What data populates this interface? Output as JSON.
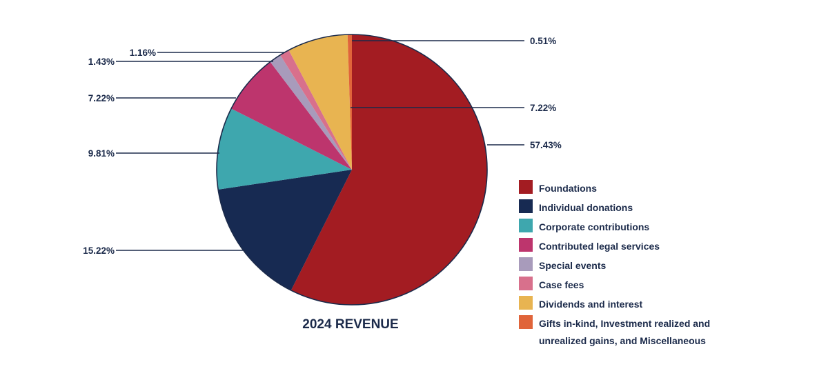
{
  "chart_data": {
    "type": "pie",
    "title": "2024 REVENUE",
    "slices": [
      {
        "label": "Foundations",
        "value": 57.43,
        "value_label": "57.43%",
        "color": "#a31c22"
      },
      {
        "label": "Individual donations",
        "value": 15.22,
        "value_label": "15.22%",
        "color": "#172a52"
      },
      {
        "label": "Corporate contributions",
        "value": 9.81,
        "value_label": "9.81%",
        "color": "#3ea7ae"
      },
      {
        "label": "Contributed legal services",
        "value": 7.22,
        "value_label": "7.22%",
        "color": "#bd356d"
      },
      {
        "label": "Special events",
        "value": 1.43,
        "value_label": "1.43%",
        "color": "#a89bbb"
      },
      {
        "label": "Case fees",
        "value": 1.16,
        "value_label": "1.16%",
        "color": "#d8708c"
      },
      {
        "label": "Dividends and interest",
        "value": 7.22,
        "value_label": "7.22%",
        "color": "#e8b451"
      },
      {
        "label": "Gifts in-kind, Investment realized and unrealized gains, and Miscellaneous",
        "value": 0.51,
        "value_label": "0.51%",
        "color": "#e0643a"
      }
    ],
    "start_angle_deg": 0,
    "direction": "clockwise",
    "legend_position": "right"
  }
}
